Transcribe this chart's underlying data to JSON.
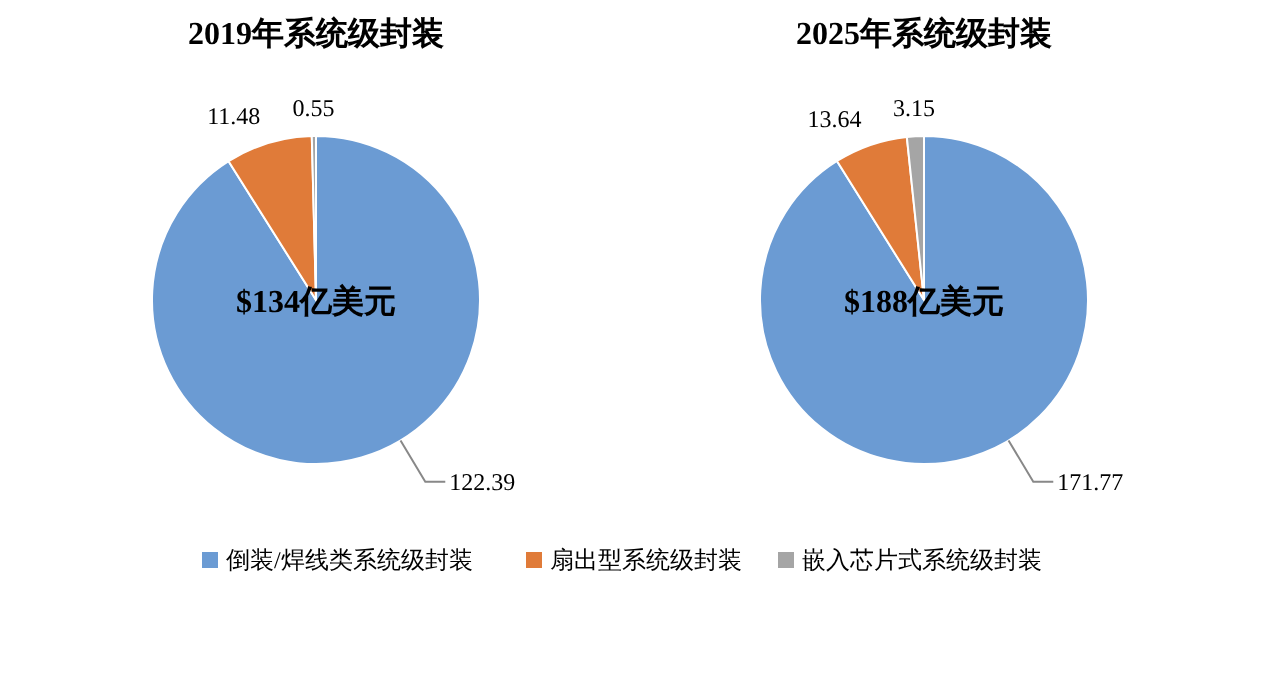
{
  "chart_data": [
    {
      "type": "pie",
      "title": "2019年系统级封装",
      "categories": [
        "倒装/焊线类系统级封装",
        "扇出型系统级封装",
        "嵌入芯片式系统级封装"
      ],
      "values": [
        122.39,
        11.48,
        0.55
      ],
      "colors": [
        "#6b9bd3",
        "#e07b39",
        "#a5a5a5"
      ],
      "data_labels": true,
      "legend": "bottom",
      "annotations": [
        "$134亿美元"
      ]
    },
    {
      "type": "pie",
      "title": "2025年系统级封装",
      "categories": [
        null,
        null,
        null
      ],
      "values": [
        171.77,
        13.64,
        3.15
      ],
      "colors": [
        "#6b9bd3",
        "#e07b39",
        "#a5a5a5"
      ],
      "data_labels": true,
      "annotations": [
        "$188亿美元"
      ]
    }
  ]
}
